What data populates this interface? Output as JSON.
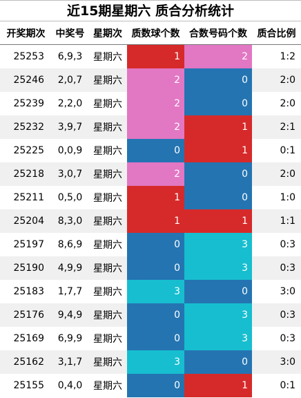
{
  "title": "近15期星期六 质合分析统计",
  "headers": [
    "开奖期次",
    "中奖号",
    "星期次",
    "质数球个数",
    "合数号码个数",
    "质合比例"
  ],
  "colors": {
    "0": "#2474b2",
    "1": "#d62a2a",
    "2": "#e277c3",
    "3": "#17becf"
  },
  "rows": [
    {
      "issue": "25253",
      "numbers": "6,9,3",
      "weekday": "星期六",
      "prime": 1,
      "composite": 2,
      "ratio": "1:2"
    },
    {
      "issue": "25246",
      "numbers": "2,0,7",
      "weekday": "星期六",
      "prime": 2,
      "composite": 0,
      "ratio": "2:0"
    },
    {
      "issue": "25239",
      "numbers": "2,2,0",
      "weekday": "星期六",
      "prime": 2,
      "composite": 0,
      "ratio": "2:0"
    },
    {
      "issue": "25232",
      "numbers": "3,9,7",
      "weekday": "星期六",
      "prime": 2,
      "composite": 1,
      "ratio": "2:1"
    },
    {
      "issue": "25225",
      "numbers": "0,0,9",
      "weekday": "星期六",
      "prime": 0,
      "composite": 1,
      "ratio": "0:1"
    },
    {
      "issue": "25218",
      "numbers": "3,0,7",
      "weekday": "星期六",
      "prime": 2,
      "composite": 0,
      "ratio": "2:0"
    },
    {
      "issue": "25211",
      "numbers": "0,5,0",
      "weekday": "星期六",
      "prime": 1,
      "composite": 0,
      "ratio": "1:0"
    },
    {
      "issue": "25204",
      "numbers": "8,3,0",
      "weekday": "星期六",
      "prime": 1,
      "composite": 1,
      "ratio": "1:1"
    },
    {
      "issue": "25197",
      "numbers": "8,6,9",
      "weekday": "星期六",
      "prime": 0,
      "composite": 3,
      "ratio": "0:3"
    },
    {
      "issue": "25190",
      "numbers": "4,9,9",
      "weekday": "星期六",
      "prime": 0,
      "composite": 3,
      "ratio": "0:3"
    },
    {
      "issue": "25183",
      "numbers": "1,7,7",
      "weekday": "星期六",
      "prime": 3,
      "composite": 0,
      "ratio": "3:0"
    },
    {
      "issue": "25176",
      "numbers": "9,4,9",
      "weekday": "星期六",
      "prime": 0,
      "composite": 3,
      "ratio": "0:3"
    },
    {
      "issue": "25169",
      "numbers": "6,9,9",
      "weekday": "星期六",
      "prime": 0,
      "composite": 3,
      "ratio": "0:3"
    },
    {
      "issue": "25162",
      "numbers": "3,1,7",
      "weekday": "星期六",
      "prime": 3,
      "composite": 0,
      "ratio": "3:0"
    },
    {
      "issue": "25155",
      "numbers": "0,4,0",
      "weekday": "星期六",
      "prime": 0,
      "composite": 1,
      "ratio": "0:1"
    }
  ]
}
